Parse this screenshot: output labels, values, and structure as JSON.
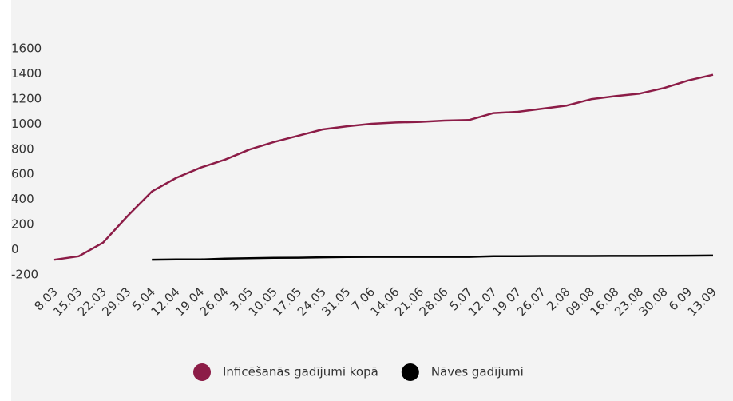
{
  "chart_data": {
    "type": "line",
    "categories": [
      "8.03",
      "15.03",
      "22.03",
      "29.03",
      "5.04",
      "12.04",
      "19.04",
      "26.04",
      "3.05",
      "10.05",
      "17.05",
      "24.05",
      "31.05",
      "7.06",
      "14.06",
      "21.06",
      "28.06",
      "5.07",
      "12.07",
      "19.07",
      "26.07",
      "2.08",
      "09.08",
      "16.08",
      "23.08",
      "30.08",
      "6.09",
      "13.09"
    ],
    "series": [
      {
        "name": "Inficēšanās gadījumi kopā",
        "color": "#8c1c47",
        "values": [
          2,
          30,
          139,
          350,
          546,
          655,
          736,
          800,
          880,
          940,
          990,
          1040,
          1065,
          1085,
          1095,
          1100,
          1110,
          1115,
          1170,
          1180,
          1205,
          1230,
          1280,
          1305,
          1325,
          1370,
          1430,
          1475
        ]
      },
      {
        "name": "Nāves gadījumi",
        "color": "#000000",
        "values": [
          null,
          null,
          null,
          null,
          3,
          5,
          5,
          12,
          15,
          18,
          19,
          22,
          24,
          25,
          25,
          25,
          25,
          25,
          30,
          31,
          32,
          32,
          32,
          33,
          33,
          34,
          35,
          36
        ]
      }
    ],
    "ylim": [
      -200,
      1600
    ],
    "yticks": [
      -200,
      0,
      200,
      400,
      600,
      800,
      1000,
      1200,
      1400,
      1600
    ],
    "zero_line": true
  }
}
